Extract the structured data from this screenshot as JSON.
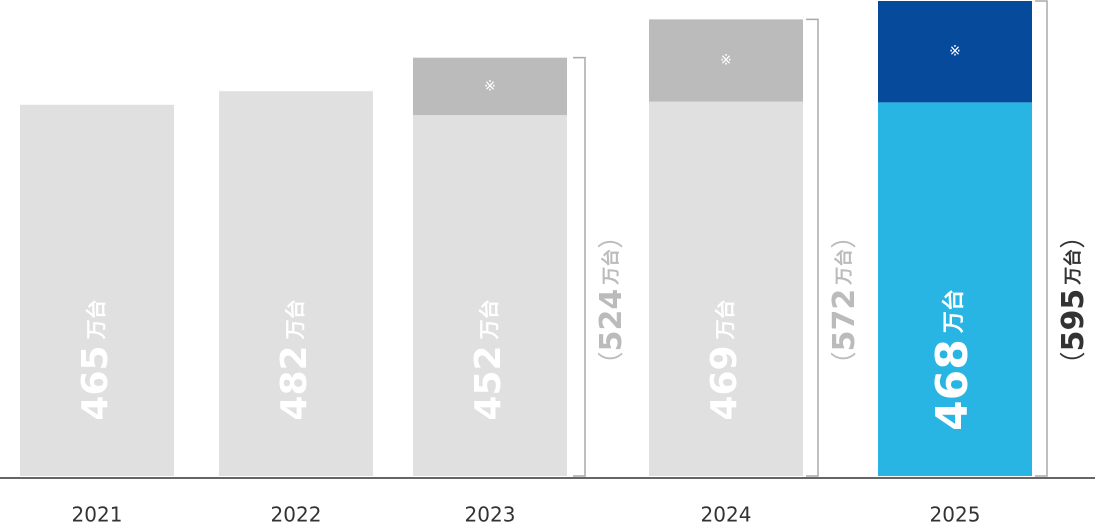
{
  "chart_data": {
    "type": "stacked-bar",
    "categories": [
      "2021",
      "2022",
      "2023",
      "2024",
      "2025"
    ],
    "unit": "万台",
    "note_marker": "※",
    "brackets": [
      "（",
      "）"
    ],
    "series": [
      {
        "values": [
          465,
          482,
          452,
          469,
          468
        ],
        "colors": [
          "#e0e0e0",
          "#e0e0e0",
          "#e0e0e0",
          "#e0e0e0",
          "#29b5e3"
        ]
      },
      {
        "values": [
          null,
          null,
          72,
          103,
          127
        ],
        "colors": [
          "#bbbbbb",
          "#bbbbbb",
          "#bbbbbb",
          "#bbbbbb",
          "#064a9c"
        ]
      }
    ],
    "totals": [
      null,
      null,
      524,
      572,
      595
    ],
    "highlight": "2025",
    "ylim": [
      0,
      595
    ]
  }
}
